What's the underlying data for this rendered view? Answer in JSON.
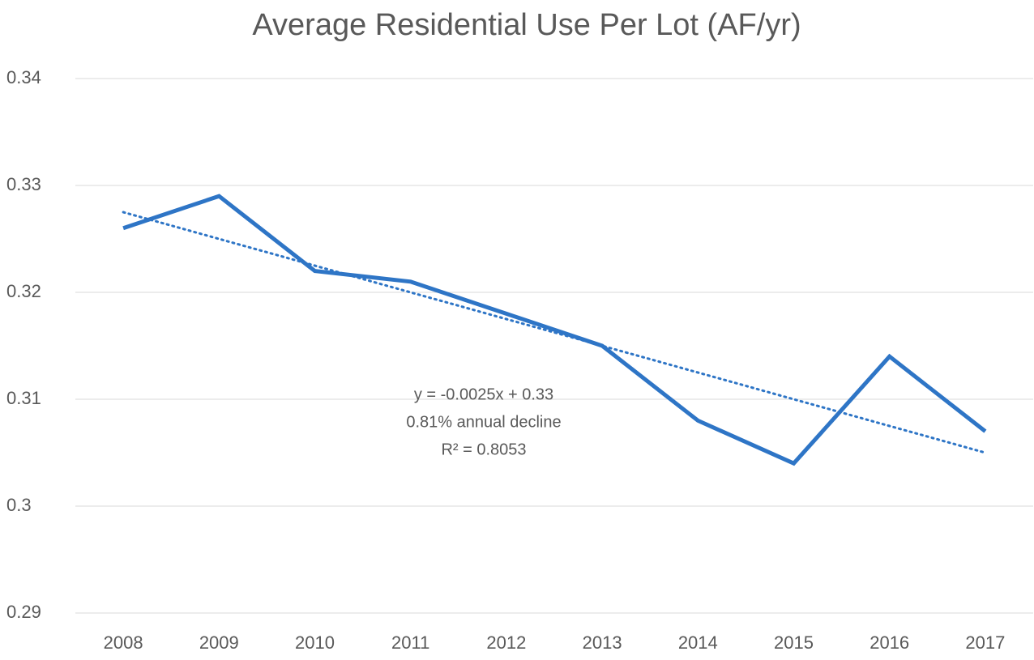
{
  "chart_data": {
    "type": "line",
    "title": "Average Residential Use Per Lot (AF/yr)",
    "categories": [
      "2008",
      "2009",
      "2010",
      "2011",
      "2012",
      "2013",
      "2014",
      "2015",
      "2016",
      "2017"
    ],
    "series": [
      {
        "color": "#2e75c6",
        "values": [
          0.326,
          0.329,
          0.322,
          0.321,
          0.318,
          0.315,
          0.308,
          0.304,
          0.314,
          0.307
        ]
      }
    ],
    "trendline": {
      "color": "#2e75c6",
      "style": "dotted",
      "values": [
        0.3275,
        0.325,
        0.3225,
        0.32,
        0.3175,
        0.315,
        0.3125,
        0.31,
        0.3075,
        0.305
      ]
    },
    "annotations": [
      "y = -0.0025x + 0.33",
      "0.81% annual decline",
      "R² = 0.8053"
    ],
    "ylim": [
      0.29,
      0.34
    ],
    "yticks": [
      0.34,
      0.33,
      0.32,
      0.31,
      0.3,
      0.29
    ],
    "grid": true
  }
}
